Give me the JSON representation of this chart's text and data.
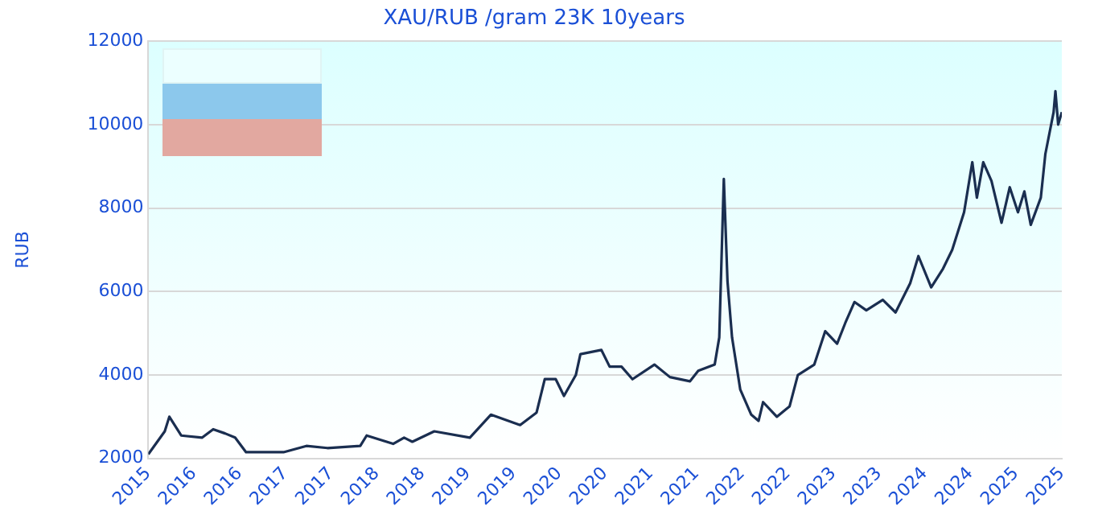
{
  "chart_data": {
    "type": "line",
    "title": "XAU/RUB /gram 23K 10years",
    "ylabel": "RUB",
    "x": [
      2015.5,
      2015.68,
      2015.73,
      2015.86,
      2016.09,
      2016.21,
      2016.34,
      2016.45,
      2016.57,
      2016.98,
      2017.23,
      2017.46,
      2017.82,
      2017.89,
      2018.18,
      2018.3,
      2018.39,
      2018.63,
      2019.02,
      2019.25,
      2019.57,
      2019.75,
      2019.84,
      2019.96,
      2020.05,
      2020.18,
      2020.23,
      2020.46,
      2020.55,
      2020.68,
      2020.8,
      2021.04,
      2021.21,
      2021.43,
      2021.52,
      2021.7,
      2021.75,
      2021.8,
      2021.84,
      2021.89,
      2021.98,
      2022.1,
      2022.18,
      2022.23,
      2022.38,
      2022.52,
      2022.61,
      2022.79,
      2022.91,
      2023.04,
      2023.13,
      2023.23,
      2023.36,
      2023.54,
      2023.68,
      2023.84,
      2023.93,
      2024.07,
      2024.2,
      2024.3,
      2024.43,
      2024.52,
      2024.57,
      2024.64,
      2024.73,
      2024.84,
      2024.93,
      2025.02,
      2025.09,
      2025.16,
      2025.27,
      2025.32,
      2025.41,
      2025.43,
      2025.46,
      2025.5
    ],
    "series": [
      {
        "color": "#1a2e50",
        "values": [
          2100,
          2650,
          3000,
          2550,
          2500,
          2700,
          2600,
          2500,
          2150,
          2150,
          2300,
          2250,
          2300,
          2550,
          2350,
          2500,
          2400,
          2650,
          2500,
          3050,
          2800,
          3100,
          3900,
          3900,
          3500,
          4000,
          4500,
          4600,
          4200,
          4200,
          3900,
          4250,
          3950,
          3850,
          4100,
          4250,
          4900,
          8700,
          6250,
          4900,
          3650,
          3050,
          2900,
          3350,
          3000,
          3250,
          4000,
          4250,
          5050,
          4750,
          5250,
          5750,
          5550,
          5800,
          5500,
          6200,
          6850,
          6100,
          6550,
          7000,
          7900,
          9100,
          8250,
          9100,
          8650,
          7650,
          8500,
          7900,
          8400,
          7600,
          8250,
          9300,
          10300,
          10800,
          10000,
          10300
        ]
      }
    ],
    "xlim": [
      2015.5,
      2025.5
    ],
    "xticks": [
      {
        "value": 2015.5,
        "label": "2015"
      },
      {
        "value": 2016,
        "label": "2016"
      },
      {
        "value": 2016.5,
        "label": "2016"
      },
      {
        "value": 2017,
        "label": "2017"
      },
      {
        "value": 2017.5,
        "label": "2017"
      },
      {
        "value": 2018,
        "label": "2018"
      },
      {
        "value": 2018.5,
        "label": "2018"
      },
      {
        "value": 2019,
        "label": "2019"
      },
      {
        "value": 2019.5,
        "label": "2019"
      },
      {
        "value": 2020,
        "label": "2020"
      },
      {
        "value": 2020.5,
        "label": "2020"
      },
      {
        "value": 2021,
        "label": "2021"
      },
      {
        "value": 2021.5,
        "label": "2021"
      },
      {
        "value": 2022,
        "label": "2022"
      },
      {
        "value": 2022.5,
        "label": "2022"
      },
      {
        "value": 2023,
        "label": "2023"
      },
      {
        "value": 2023.5,
        "label": "2023"
      },
      {
        "value": 2024,
        "label": "2024"
      },
      {
        "value": 2024.5,
        "label": "2024"
      },
      {
        "value": 2025,
        "label": "2025"
      },
      {
        "value": 2025.5,
        "label": "2025"
      }
    ],
    "ylim": [
      2000,
      12000
    ],
    "yticks": [
      2000,
      4000,
      6000,
      8000,
      10000,
      12000
    ],
    "grid": "y",
    "marker": "none",
    "line_style": "solid"
  }
}
